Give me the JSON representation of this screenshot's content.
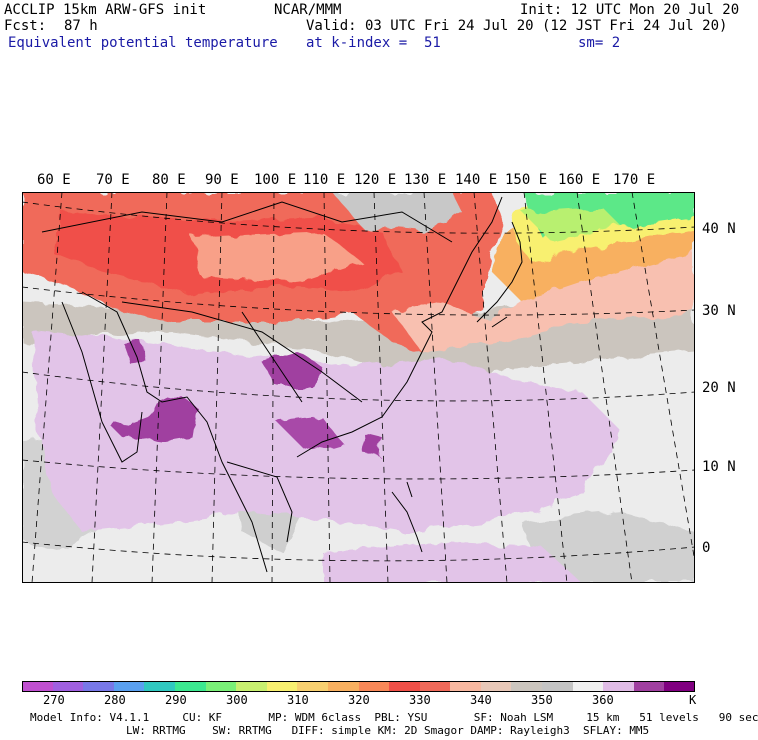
{
  "header": {
    "title": "ACCLIP 15km ARW-GFS init",
    "org": "NCAR/MMM",
    "init": "Init: 12 UTC Mon 20 Jul 20",
    "fcst_label": "Fcst:",
    "fcst_value": "87 h",
    "valid": "Valid: 03 UTC Fri 24 Jul 20 (12 JST Fri 24 Jul 20)",
    "field": "Equivalent potential temperature",
    "level": "at k-index =  51",
    "smoothing": "sm= 2"
  },
  "longitude_labels": [
    "60 E",
    "70 E",
    "80 E",
    "90 E",
    "100 E",
    "110 E",
    "120 E",
    "130 E",
    "140 E",
    "150 E",
    "160 E",
    "170 E"
  ],
  "latitude_labels": [
    "40 N",
    "30 N",
    "20 N",
    "10 N",
    "0"
  ],
  "colorbar": {
    "unit": "K",
    "tick_labels": [
      "270",
      "280",
      "290",
      "300",
      "310",
      "320",
      "330",
      "340",
      "350",
      "360"
    ],
    "colors": [
      "#c050d0",
      "#a060e0",
      "#7878e8",
      "#5aa0f0",
      "#30c8c0",
      "#3ce890",
      "#7af078",
      "#c8f070",
      "#f8f070",
      "#f8d070",
      "#f8b060",
      "#f88858",
      "#f05048",
      "#f06a5a",
      "#f8b8a0",
      "#e8c8b8",
      "#cbc5be",
      "#c4c4c4",
      "#f0f0f0",
      "#e0bce6",
      "#a040a0",
      "#800080"
    ]
  },
  "footer": {
    "line1": "Model Info: V4.1.1     CU: KF       MP: WDM 6class  PBL: YSU       SF: Noah LSM     15 km   51 levels   90 sec",
    "line2": "LW: RRTMG    SW: RRTMG   DIFF: simple KM: 2D Smagor DAMP: Rayleigh3  SFLAY: MM5"
  }
}
